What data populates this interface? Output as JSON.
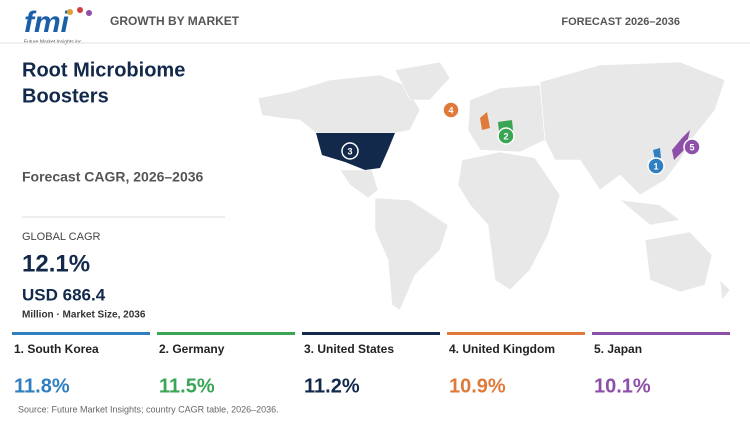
{
  "header": {
    "logo": "fmi",
    "logo_tagline": "Future Market Insights inc.",
    "section": "GROWTH BY MARKET",
    "forecast": "FORECAST 2026–2036"
  },
  "summary": {
    "title_line1": "Root Microbiome",
    "title_line2": "Boosters",
    "subtitle": "Forecast CAGR, 2026–2036",
    "global_label": "GLOBAL CAGR",
    "global_value": "12.1%",
    "market_size": "USD 686.4",
    "market_size_note": "Million · Market Size, 2036"
  },
  "markets": [
    {
      "marker": "1",
      "label": "1. South Korea",
      "cagr": "11.8%",
      "color": "#2f7fc1"
    },
    {
      "marker": "2",
      "label": "2. Germany",
      "cagr": "11.5%",
      "color": "#3aa655"
    },
    {
      "marker": "3",
      "label": "3. United States",
      "cagr": "11.2%",
      "color": "#13294b"
    },
    {
      "marker": "4",
      "label": "4. United Kingdom",
      "cagr": "10.9%",
      "color": "#e07a3a"
    },
    {
      "marker": "5",
      "label": "5. Japan",
      "cagr": "10.1%",
      "color": "#8e4fa8"
    }
  ],
  "source": "Source: Future Market Insights; country CAGR table, 2026–2036."
}
